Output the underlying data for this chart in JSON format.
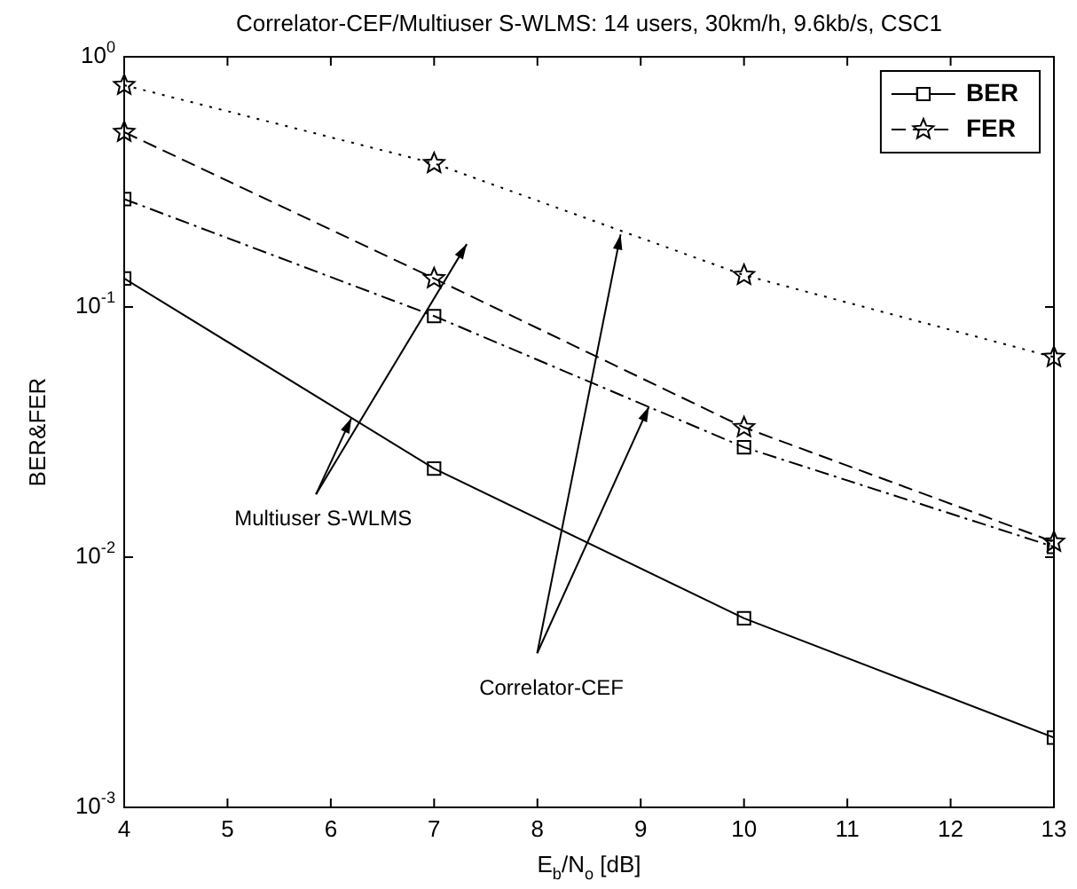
{
  "chart_data": {
    "type": "line",
    "title": "Correlator-CEF/Multiuser S-WLMS: 14 users, 30km/h, 9.6kb/s, CSC1",
    "xlabel": "E$_{b}$/N$_{o}$ [dB]",
    "ylabel": "BER&FER",
    "x": [
      4,
      7,
      10,
      13
    ],
    "series": [
      {
        "name": "BER",
        "color": "#000000",
        "values": [
          0.13,
          0.0226,
          0.0057,
          0.0019
        ],
        "marker": "square",
        "line_style": "solid"
      },
      {
        "color": "#000000",
        "values": [
          0.27,
          0.092,
          0.0275,
          0.011
        ],
        "marker": "square",
        "line_style": "dashdot"
      },
      {
        "name": "FER",
        "color": "#000000",
        "values": [
          0.5,
          0.13,
          0.033,
          0.0115
        ],
        "marker": "star",
        "line_style": "dashed"
      },
      {
        "color": "#000000",
        "values": [
          0.77,
          0.375,
          0.134,
          0.063
        ],
        "marker": "star",
        "line_style": "dotted"
      }
    ],
    "log": "y",
    "xlim": [
      4,
      13
    ],
    "xticks": [
      4,
      5,
      6,
      7,
      8,
      9,
      10,
      11,
      12,
      13
    ],
    "ylim": [
      0.001,
      1
    ],
    "yticks": [
      {
        "value": 0.001,
        "label": "10$^{-3}$"
      },
      {
        "value": 0.01,
        "label": "10$^{-2}$"
      },
      {
        "value": 0.1,
        "label": "10$^{-1}$"
      },
      {
        "value": 1,
        "label": "10$^{0}$"
      }
    ],
    "grid": false,
    "legend": "top right",
    "annotations": [
      {
        "text": "Multiuser S-WLMS",
        "x": 6.2,
        "y": 0.036
      },
      {
        "text": "Correlator-CEF",
        "x": 9.08,
        "y": 0.04
      }
    ]
  }
}
